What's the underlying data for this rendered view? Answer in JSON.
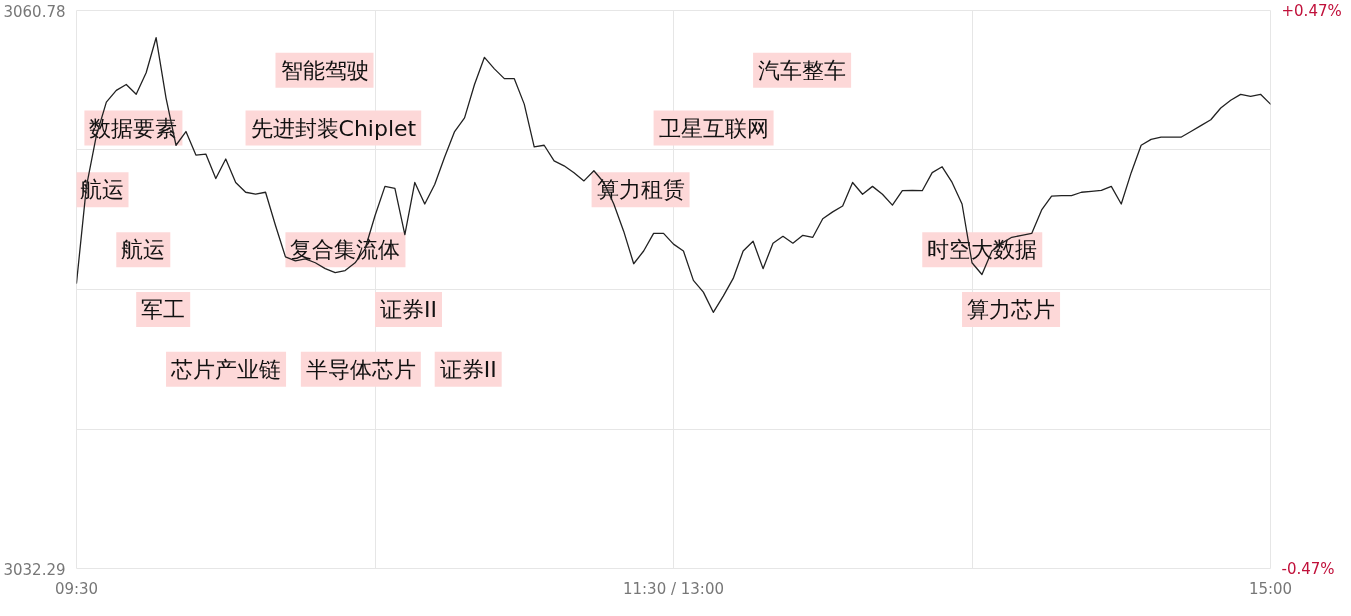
{
  "chart_data": {
    "type": "line",
    "categories": [
      "09:30",
      null,
      null,
      null,
      null,
      null,
      null,
      null,
      null,
      null,
      null,
      null,
      null,
      null,
      null,
      null,
      null,
      null,
      null,
      null,
      null,
      null,
      null,
      null,
      null,
      null,
      null,
      null,
      null,
      null,
      null,
      null,
      null,
      null,
      null,
      null,
      null,
      null,
      null,
      null,
      null,
      null,
      null,
      null,
      null,
      null,
      null,
      null,
      null,
      null,
      null,
      null,
      null,
      null,
      null,
      null,
      null,
      null,
      null,
      null,
      "11:30 / 13:00",
      null,
      null,
      null,
      null,
      null,
      null,
      null,
      null,
      null,
      null,
      null,
      null,
      null,
      null,
      null,
      null,
      null,
      null,
      null,
      null,
      null,
      null,
      null,
      null,
      null,
      null,
      null,
      null,
      null,
      null,
      null,
      null,
      null,
      null,
      null,
      null,
      null,
      null,
      null,
      null,
      null,
      null,
      null,
      null,
      null,
      null,
      null,
      null,
      null,
      null,
      null,
      null,
      null,
      null,
      null,
      null,
      null,
      null,
      null,
      "15:00"
    ],
    "series": [
      {
        "color": "#222222",
        "values": [
          3046.86,
          3051.8,
          3054.4,
          3056.1,
          3056.7,
          3057.0,
          3056.5,
          3057.6,
          3059.39,
          3056.31,
          3053.9,
          3054.6,
          3053.4,
          3053.45,
          3052.2,
          3053.2,
          3052.0,
          3051.5,
          3051.4,
          3051.5,
          3049.8,
          3048.2,
          3048.0,
          3048.1,
          3047.9,
          3047.6,
          3047.4,
          3047.5,
          3047.9,
          3048.6,
          3050.3,
          3051.8,
          3051.7,
          3049.34,
          3052.0,
          3050.9,
          3051.9,
          3053.3,
          3054.6,
          3055.3,
          3057.0,
          3058.39,
          3057.8,
          3057.3,
          3057.3,
          3056.0,
          3053.82,
          3053.9,
          3053.1,
          3052.85,
          3052.5,
          3052.08,
          3052.6,
          3052.0,
          3050.9,
          3049.5,
          3047.85,
          3048.5,
          3049.4,
          3049.4,
          3048.85,
          3048.5,
          3047.0,
          3046.4,
          3045.37,
          3046.2,
          3047.1,
          3048.5,
          3049.0,
          3047.6,
          3048.9,
          3049.25,
          3048.9,
          3049.3,
          3049.2,
          3050.15,
          3050.5,
          3050.8,
          3052.0,
          3051.4,
          3051.8,
          3051.4,
          3050.84,
          3051.58,
          3051.6,
          3051.58,
          3052.5,
          3052.8,
          3052.0,
          3050.9,
          3047.9,
          3047.3,
          3048.5,
          3048.9,
          3049.2,
          3049.3,
          3049.4,
          3050.6,
          3051.3,
          3051.33,
          3051.33,
          3051.5,
          3051.55,
          3051.6,
          3051.8,
          3050.9,
          3052.5,
          3053.9,
          3054.2,
          3054.31,
          3054.31,
          3054.31,
          3054.6,
          3054.9,
          3055.2,
          3055.8,
          3056.2,
          3056.5,
          3056.4,
          3056.5,
          3056.0
        ]
      }
    ],
    "ylim": [
      3032.29,
      3060.78
    ],
    "yticks": [
      3032.29,
      {
        "value": 3039.41,
        "label": null
      },
      {
        "value": 3046.535,
        "label": null
      },
      {
        "value": 3053.66,
        "label": null
      },
      3060.78
    ],
    "y2lim": [
      -0.47,
      0.47
    ],
    "y2ticks": [
      {
        "value": -0.47,
        "label": "-0.47%"
      },
      {
        "value": 0.47,
        "label": "+0.47%"
      }
    ],
    "grid": true,
    "marker": "none",
    "annotations": [
      "航运",
      "数据要素",
      "航运",
      "军工",
      "芯片产业链",
      "半导体芯片",
      "智能驾驶",
      "先进封装Chiplet",
      "复合集流体",
      "证券II",
      "证券II",
      "算力租赁",
      "卫星互联网",
      "汽车整车",
      "时空大数据",
      "算力芯片"
    ]
  }
}
